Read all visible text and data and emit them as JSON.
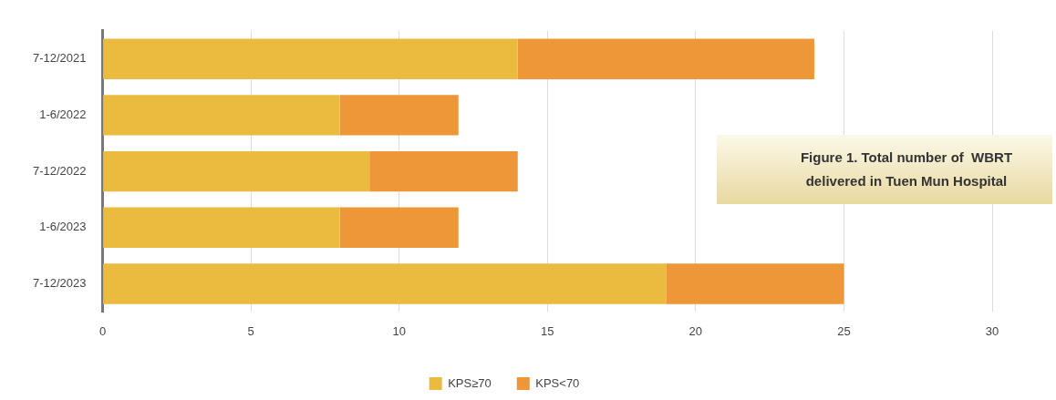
{
  "chart_data": {
    "type": "bar",
    "orientation": "horizontal",
    "stacked": true,
    "title": "Figure 1. Total number of  WBRT delivered in Tuen Mun Hospital",
    "categories": [
      "7-12/2021",
      "1-6/2022",
      "7-12/2022",
      "1-6/2023",
      "7-12/2023"
    ],
    "series": [
      {
        "name": "KPS≥70",
        "color": "#ebbb40",
        "values": [
          14,
          8,
          9,
          8,
          19
        ]
      },
      {
        "name": "KPS<70",
        "color": "#ee9738",
        "values": [
          10,
          4,
          5,
          4,
          6
        ]
      }
    ],
    "xlim": [
      0,
      30
    ],
    "xticks": [
      0,
      5,
      10,
      15,
      20,
      25,
      30
    ],
    "grid": "x",
    "legend": "bottom"
  }
}
